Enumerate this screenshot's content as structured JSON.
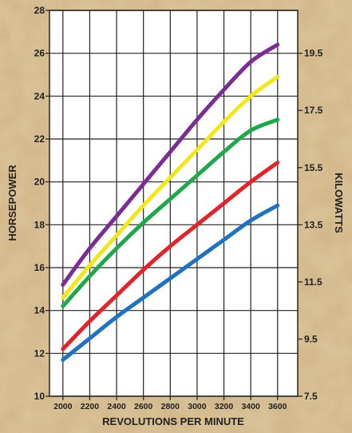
{
  "chart_data": {
    "type": "line",
    "title": "",
    "xlabel": "REVOLUTIONS PER MINUTE",
    "ylabel": "HORSEPOWER",
    "y2label": "KILOWATTS",
    "xlim": [
      1900,
      3750
    ],
    "ylim": [
      10,
      28
    ],
    "y2lim": [
      7.5,
      21
    ],
    "x_ticks": [
      2000,
      2200,
      2400,
      2600,
      2800,
      3000,
      3200,
      3400,
      3600
    ],
    "y_ticks": [
      10,
      12,
      14,
      16,
      18,
      20,
      22,
      24,
      26,
      28
    ],
    "y2_ticks": [
      7.5,
      9.5,
      11.5,
      13.5,
      15.5,
      17.5,
      19.5
    ],
    "grid": true,
    "legend": "none",
    "series": [
      {
        "color": "#7b2d93",
        "x": [
          2000,
          2200,
          2400,
          2600,
          2800,
          3000,
          3200,
          3400,
          3600
        ],
        "values": [
          15.2,
          16.9,
          18.4,
          19.9,
          21.4,
          22.9,
          24.3,
          25.6,
          26.4
        ]
      },
      {
        "color": "#f2e61c",
        "x": [
          2000,
          2200,
          2400,
          2600,
          2800,
          3000,
          3200,
          3400,
          3600
        ],
        "values": [
          14.6,
          16.1,
          17.5,
          18.9,
          20.2,
          21.5,
          22.8,
          24.0,
          24.9
        ]
      },
      {
        "color": "#1fa84a",
        "x": [
          2000,
          2200,
          2400,
          2600,
          2800,
          3000,
          3200,
          3400,
          3600
        ],
        "values": [
          14.2,
          15.6,
          16.9,
          18.1,
          19.2,
          20.3,
          21.4,
          22.4,
          22.9
        ]
      },
      {
        "color": "#e0242c",
        "x": [
          2000,
          2200,
          2400,
          2600,
          2800,
          3000,
          3200,
          3400,
          3600
        ],
        "values": [
          12.2,
          13.5,
          14.7,
          15.9,
          17.0,
          18.0,
          19.0,
          20.0,
          20.9
        ]
      },
      {
        "color": "#1f72bf",
        "x": [
          2000,
          2200,
          2400,
          2600,
          2800,
          3000,
          3200,
          3400,
          3600
        ],
        "values": [
          11.7,
          12.7,
          13.7,
          14.6,
          15.5,
          16.4,
          17.3,
          18.2,
          18.9
        ]
      }
    ]
  }
}
